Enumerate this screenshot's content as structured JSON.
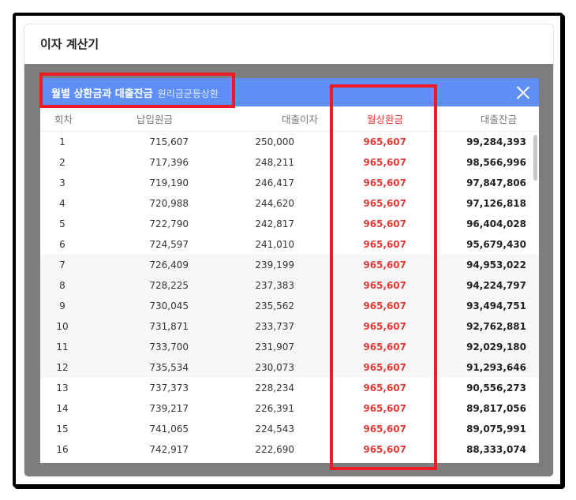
{
  "card": {
    "title": "이자 계산기"
  },
  "modal": {
    "title": "월별 상환금과 대출잔금",
    "subtitle": "원리금균등상환",
    "columns": [
      "회차",
      "납입원금",
      "대출이자",
      "월상환금",
      "대출잔금"
    ],
    "rows": [
      [
        "1",
        "715,607",
        "250,000",
        "965,607",
        "99,284,393"
      ],
      [
        "2",
        "717,396",
        "248,211",
        "965,607",
        "98,566,996"
      ],
      [
        "3",
        "719,190",
        "246,417",
        "965,607",
        "97,847,806"
      ],
      [
        "4",
        "720,988",
        "244,620",
        "965,607",
        "97,126,818"
      ],
      [
        "5",
        "722,790",
        "242,817",
        "965,607",
        "96,404,028"
      ],
      [
        "6",
        "724,597",
        "241,010",
        "965,607",
        "95,679,430"
      ],
      [
        "7",
        "726,409",
        "239,199",
        "965,607",
        "94,953,022"
      ],
      [
        "8",
        "728,225",
        "237,383",
        "965,607",
        "94,224,797"
      ],
      [
        "9",
        "730,045",
        "235,562",
        "965,607",
        "93,494,751"
      ],
      [
        "10",
        "731,871",
        "233,737",
        "965,607",
        "92,762,881"
      ],
      [
        "11",
        "733,700",
        "231,907",
        "965,607",
        "92,029,180"
      ],
      [
        "12",
        "735,534",
        "230,073",
        "965,607",
        "91,293,646"
      ],
      [
        "13",
        "737,373",
        "228,234",
        "965,607",
        "90,556,273"
      ],
      [
        "14",
        "739,217",
        "226,391",
        "965,607",
        "89,817,056"
      ],
      [
        "15",
        "741,065",
        "224,543",
        "965,607",
        "89,075,991"
      ],
      [
        "16",
        "742,917",
        "222,690",
        "965,607",
        "88,333,074"
      ]
    ]
  },
  "colors": {
    "header": "#5f8ff4",
    "accent": "#e53935",
    "highlight": "#ee1b24"
  },
  "icons": {
    "close": "close-icon"
  }
}
